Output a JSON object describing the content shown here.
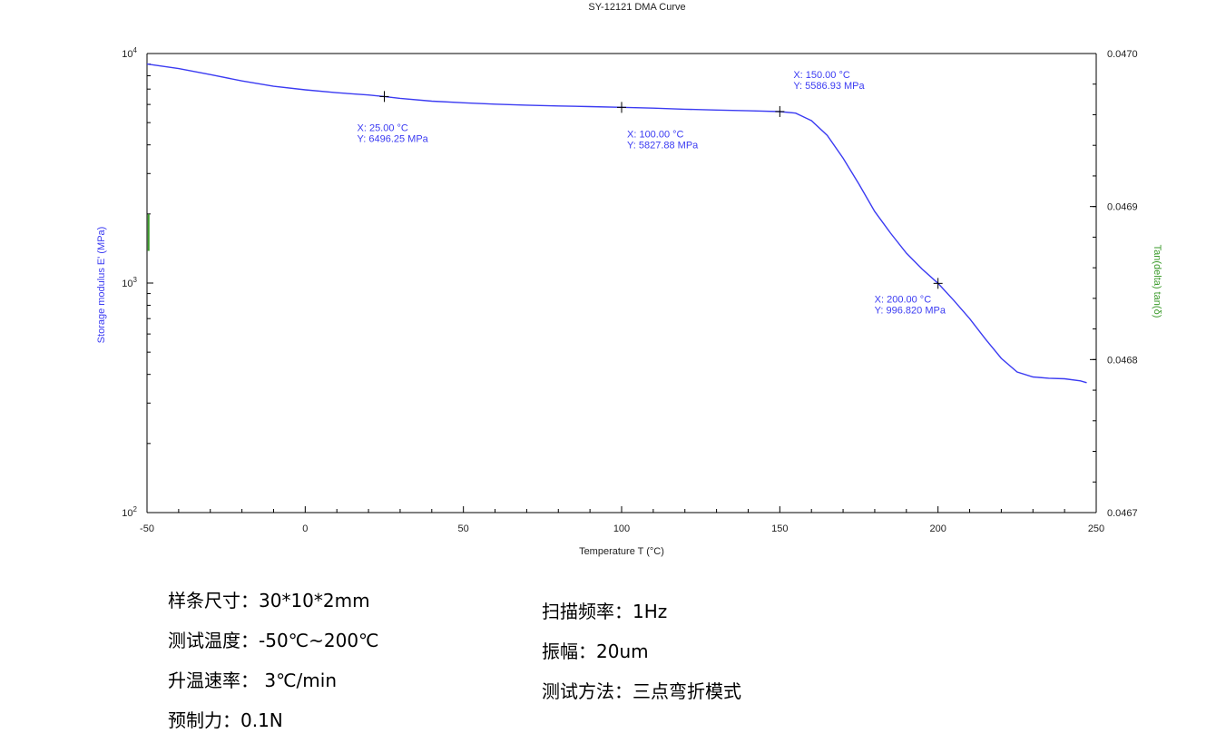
{
  "chart_data": {
    "type": "line",
    "title": "SY-12121 DMA Curve",
    "xlabel": "Temperature T (°C)",
    "ylabel_left": "Storage modulus E' (MPa)",
    "ylabel_right": "Tan(delta) tan(δ)",
    "xlim": [
      -50,
      250
    ],
    "x_ticks": [
      "-50",
      "0",
      "50",
      "100",
      "150",
      "200",
      "250"
    ],
    "ylim_left": [
      100,
      10000
    ],
    "y_scale_left": "log",
    "y_ticks_left": [
      {
        "base": "10",
        "exp": "4",
        "value": 10000
      },
      {
        "base": "10",
        "exp": "3",
        "value": 1000
      },
      {
        "base": "10",
        "exp": "2",
        "value": 100
      }
    ],
    "ylim_right": [
      0.0467,
      0.047
    ],
    "y_ticks_right": [
      "0.0470",
      "0.0469",
      "0.0468",
      "0.0467"
    ],
    "grid": false,
    "series": [
      {
        "name": "Storage modulus E'",
        "color": "#3b3bf2",
        "x": [
          -50,
          -40,
          -30,
          -20,
          -10,
          0,
          10,
          20,
          25,
          30,
          40,
          50,
          60,
          70,
          80,
          90,
          100,
          110,
          120,
          130,
          140,
          150,
          155,
          160,
          165,
          170,
          175,
          180,
          185,
          190,
          195,
          200,
          205,
          210,
          215,
          220,
          225,
          230,
          235,
          240,
          245,
          247
        ],
        "y": [
          9000,
          8600,
          8100,
          7600,
          7200,
          6950,
          6750,
          6600,
          6496,
          6380,
          6200,
          6100,
          6020,
          5960,
          5910,
          5870,
          5828,
          5780,
          5720,
          5670,
          5630,
          5587,
          5500,
          5100,
          4400,
          3500,
          2700,
          2050,
          1650,
          1350,
          1150,
          997,
          840,
          700,
          570,
          470,
          410,
          390,
          385,
          383,
          375,
          368
        ]
      },
      {
        "name": "Tan(delta)",
        "color": "#3a9a2a",
        "x": [
          -49.5,
          -49.5
        ],
        "y": [
          0.046895,
          0.046871
        ]
      }
    ],
    "annotations": [
      {
        "x": 25,
        "y": 6496.25,
        "line1": "X: 25.00 °C",
        "line2": "Y: 6496.25 MPa"
      },
      {
        "x": 100,
        "y": 5827.88,
        "line1": "X: 100.00 °C",
        "line2": "Y: 5827.88 MPa"
      },
      {
        "x": 150,
        "y": 5586.93,
        "line1": "X: 150.00 °C",
        "line2": "Y: 5586.93 MPa"
      },
      {
        "x": 200,
        "y": 996.82,
        "line1": "X: 200.00 °C",
        "line2": "Y: 996.820 MPa"
      }
    ],
    "axis_color_left": "#3b3bf2",
    "axis_color_right": "#3a9a2a"
  },
  "params": {
    "left": [
      "样条尺寸：30*10*2mm",
      "测试温度：-50℃~200℃",
      "升温速率： 3℃/min",
      "预制力：0.1N"
    ],
    "right": [
      "扫描频率：1Hz",
      "振幅：20um",
      "测试方法：三点弯折模式"
    ]
  }
}
